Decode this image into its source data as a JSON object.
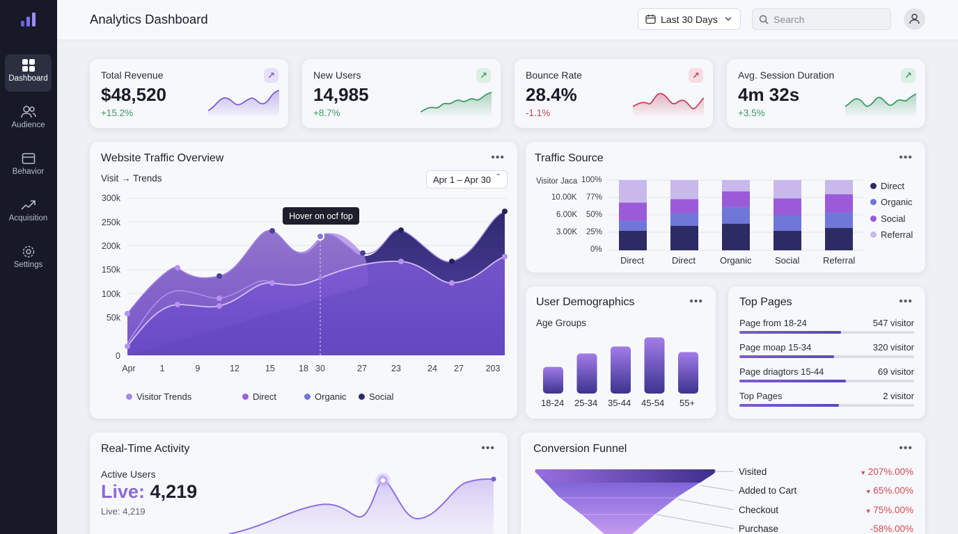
{
  "sidebar": {
    "items": [
      {
        "label": "Dashboard",
        "icon": "grid-icon"
      },
      {
        "label": "Audience",
        "icon": "users-icon"
      },
      {
        "label": "Behavior",
        "icon": "card-icon"
      },
      {
        "label": "Acquisition",
        "icon": "trend-icon"
      },
      {
        "label": "Settings",
        "icon": "gear-icon"
      }
    ]
  },
  "header": {
    "title": "Analytics Dashboard",
    "date_range": "Last 30 Days",
    "search_placeholder": "Search"
  },
  "kpis": [
    {
      "label": "Total Revenue",
      "value": "$48,520",
      "change": "+15.2%",
      "trend": "up",
      "color": "#7b5cd6"
    },
    {
      "label": "New Users",
      "value": "14,985",
      "change": "+8.7%",
      "trend": "up",
      "color": "#3d9a67"
    },
    {
      "label": "Bounce Rate",
      "value": "28.4%",
      "change": "-1.1%",
      "trend": "down",
      "color": "#c4415b"
    },
    {
      "label": "Avg. Session Duration",
      "value": "4m 32s",
      "change": "+3.5%",
      "trend": "up",
      "color": "#3d9a67"
    }
  ],
  "traffic": {
    "title": "Website Traffic Overview",
    "subtitle": "Visit → Trends",
    "range": "Apr 1 – Apr 30",
    "tooltip": "Hover on ocf fop",
    "legend": [
      "Visitor Trends",
      "Direct",
      "Organic",
      "Social"
    ],
    "y_ticks": [
      "300k",
      "250k",
      "200k",
      "150k",
      "100k",
      "50k",
      "0"
    ],
    "x_ticks": [
      "Apr",
      "1",
      "9",
      "12",
      "15",
      "18",
      "30",
      "27",
      "23",
      "24",
      "27",
      "203"
    ]
  },
  "source": {
    "title": "Traffic Source",
    "y_title": "Visitor Jaca",
    "y_ticks_left": [
      "10.00K",
      "6.00K",
      "3.00K"
    ],
    "y_ticks_right": [
      "100%",
      "77%",
      "50%",
      "25%",
      "0%"
    ],
    "categories": [
      "Direct",
      "Direct",
      "Organic",
      "Social",
      "Referral"
    ],
    "legend": [
      "Direct",
      "Organic",
      "Social",
      "Referral"
    ]
  },
  "demographics": {
    "title": "User Demographics",
    "subtitle": "Age Groups",
    "categories": [
      "18-24",
      "25-34",
      "35-44",
      "45-54",
      "55+"
    ]
  },
  "top_pages": {
    "title": "Top Pages",
    "rows": [
      {
        "label": "Page from 18-24",
        "value": "547 visitor",
        "fill": 0.58
      },
      {
        "label": "Page moap 15-34",
        "value": "320 visitor",
        "fill": 0.54
      },
      {
        "label": "Page driagtors 15-44",
        "value": "69 visitor",
        "fill": 0.61
      },
      {
        "label": "Top Pages",
        "value": "2 visitor",
        "fill": 0.57
      }
    ]
  },
  "realtime": {
    "title": "Real-Time Activity",
    "active_label": "Active Users",
    "live_prefix": "Live:",
    "live_value": "4,219",
    "live_sub": "Live: 4,219"
  },
  "funnel": {
    "title": "Conversion Funnel",
    "stages": [
      {
        "label": "Visited",
        "value": "207%.00%"
      },
      {
        "label": "Added to Cart",
        "value": "65%.00%"
      },
      {
        "label": "Checkout",
        "value": "75%.00%"
      },
      {
        "label": "Purchase",
        "value": "-58%.00%"
      }
    ]
  },
  "chart_data": [
    {
      "type": "bar",
      "title": "Traffic Source",
      "categories": [
        "Direct",
        "Direct",
        "Organic",
        "Social",
        "Referral"
      ],
      "stacked": true,
      "ylim": [
        0,
        100
      ],
      "series": [
        {
          "name": "Direct",
          "values": [
            28,
            35,
            38,
            28,
            32
          ],
          "color": "#2d2b63"
        },
        {
          "name": "Organic",
          "values": [
            14,
            18,
            24,
            22,
            22
          ],
          "color": "#6f77d9"
        },
        {
          "name": "Social",
          "values": [
            26,
            20,
            22,
            24,
            26
          ],
          "color": "#9b5ad8"
        },
        {
          "name": "Referral",
          "values": [
            32,
            27,
            16,
            26,
            20
          ],
          "color": "#c9b8ec"
        }
      ]
    },
    {
      "type": "bar",
      "title": "User Demographics",
      "categories": [
        "18-24",
        "25-34",
        "35-44",
        "45-54",
        "55+"
      ],
      "values": [
        38,
        57,
        67,
        80,
        59
      ],
      "ylim": [
        0,
        100
      ]
    }
  ]
}
